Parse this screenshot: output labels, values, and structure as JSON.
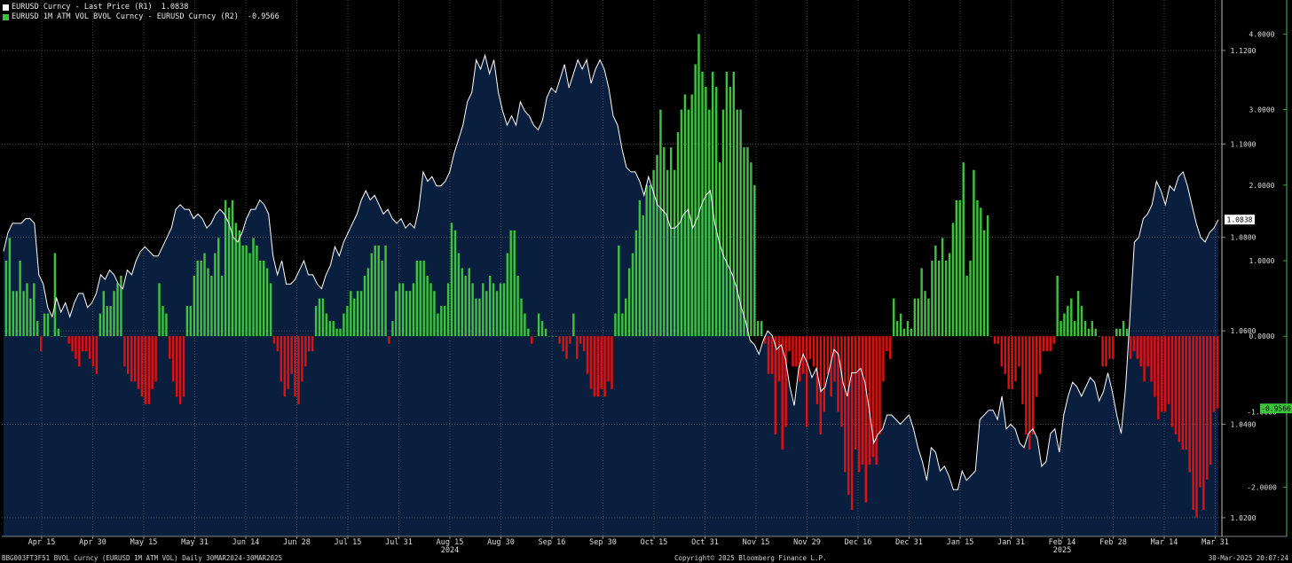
{
  "legend": [
    {
      "label": "EURUSD Curncy - Last Price (R1)",
      "value": "1.0838",
      "color": "#ffffff"
    },
    {
      "label": "EURUSD 1M ATM VOL BVOL Curncy - EURUSD Curncy (R2)",
      "value": "-0.9566",
      "color": "#3ec23e"
    }
  ],
  "footer": {
    "left": "BBG003FT3F51 BVOL Curncy (EURUSD 1M ATM VOL)  Daily 30MAR2024-30MAR2025",
    "center": "Copyright© 2025 Bloomberg Finance L.P.",
    "right": "30-Mar-2025 20:07:24"
  },
  "colors": {
    "background": "#000000",
    "area": "#0a1f3e",
    "line": "#ffffff",
    "pos_bar": "#3ec23e",
    "neg_bar": "#e01010",
    "grid": "#6a6a6a"
  },
  "chart_data": {
    "type": "bar+area",
    "x_ticks": [
      "Apr 15",
      "Apr 30",
      "May 15",
      "May 31",
      "Jun 14",
      "Jun 28",
      "Jul 15",
      "Jul 31",
      "Aug 15",
      "Aug 30",
      "Sep 16",
      "Sep 30",
      "Oct 15",
      "Oct 31",
      "Nov 15",
      "Nov 29",
      "Dec 16",
      "Dec 31",
      "Jan 15",
      "Jan 31",
      "Feb 14",
      "Feb 28",
      "Mar 14",
      "Mar 31"
    ],
    "year_labels": [
      {
        "label": "2024",
        "at": "Aug 15"
      },
      {
        "label": "2025",
        "at": "Feb 14"
      }
    ],
    "r1_axis": {
      "ticks": [
        "1.1200",
        "1.1000",
        "1.0800",
        "1.0600",
        "1.0400",
        "1.0200"
      ],
      "range": [
        1.016,
        1.1308
      ]
    },
    "r2_axis": {
      "ticks": [
        "4.0000",
        "3.0000",
        "2.0000",
        "1.0000",
        "0.0000",
        "-1.0000",
        "-2.0000"
      ],
      "range": [
        -2.65,
        4.45
      ]
    },
    "last_price": {
      "value": "1.0838",
      "y": 1.0838
    },
    "last_spread": {
      "value": "-0.9566",
      "y": -0.9566
    },
    "series": [
      {
        "name": "EURUSD Curncy - Last Price (R1)",
        "type": "area",
        "values": [
          1.077,
          1.081,
          1.083,
          1.083,
          1.083,
          1.084,
          1.084,
          1.083,
          1.072,
          1.07,
          1.065,
          1.063,
          1.067,
          1.064,
          1.066,
          1.063,
          1.066,
          1.068,
          1.068,
          1.065,
          1.066,
          1.068,
          1.072,
          1.071,
          1.073,
          1.072,
          1.07,
          1.069,
          1.073,
          1.072,
          1.075,
          1.077,
          1.078,
          1.077,
          1.076,
          1.076,
          1.078,
          1.08,
          1.082,
          1.086,
          1.087,
          1.086,
          1.086,
          1.084,
          1.085,
          1.084,
          1.082,
          1.083,
          1.085,
          1.086,
          1.085,
          1.083,
          1.08,
          1.079,
          1.081,
          1.084,
          1.086,
          1.086,
          1.088,
          1.087,
          1.085,
          1.076,
          1.072,
          1.075,
          1.07,
          1.07,
          1.071,
          1.073,
          1.075,
          1.072,
          1.072,
          1.07,
          1.069,
          1.072,
          1.074,
          1.078,
          1.076,
          1.079,
          1.081,
          1.083,
          1.085,
          1.088,
          1.09,
          1.088,
          1.089,
          1.087,
          1.085,
          1.086,
          1.084,
          1.083,
          1.084,
          1.082,
          1.083,
          1.082,
          1.086,
          1.094,
          1.092,
          1.093,
          1.091,
          1.091,
          1.092,
          1.094,
          1.098,
          1.101,
          1.104,
          1.109,
          1.111,
          1.118,
          1.116,
          1.119,
          1.115,
          1.118,
          1.111,
          1.107,
          1.104,
          1.106,
          1.104,
          1.109,
          1.107,
          1.106,
          1.104,
          1.103,
          1.105,
          1.11,
          1.112,
          1.111,
          1.114,
          1.117,
          1.112,
          1.115,
          1.118,
          1.116,
          1.118,
          1.113,
          1.116,
          1.118,
          1.116,
          1.112,
          1.106,
          1.104,
          1.099,
          1.095,
          1.094,
          1.094,
          1.092,
          1.089,
          1.093,
          1.09,
          1.087,
          1.086,
          1.085,
          1.082,
          1.082,
          1.083,
          1.085,
          1.086,
          1.082,
          1.084,
          1.087,
          1.089,
          1.09,
          1.083,
          1.079,
          1.076,
          1.074,
          1.072,
          1.069,
          1.065,
          1.062,
          1.058,
          1.057,
          1.055,
          1.058,
          1.06,
          1.059,
          1.056,
          1.057,
          1.054,
          1.048,
          1.044,
          1.052,
          1.055,
          1.053,
          1.05,
          1.052,
          1.047,
          1.048,
          1.052,
          1.056,
          1.055,
          1.049,
          1.046,
          1.051,
          1.051,
          1.052,
          1.049,
          1.043,
          1.036,
          1.038,
          1.039,
          1.042,
          1.042,
          1.041,
          1.04,
          1.041,
          1.042,
          1.039,
          1.035,
          1.032,
          1.028,
          1.035,
          1.034,
          1.03,
          1.031,
          1.029,
          1.026,
          1.026,
          1.03,
          1.028,
          1.029,
          1.03,
          1.041,
          1.042,
          1.043,
          1.043,
          1.041,
          1.046,
          1.039,
          1.04,
          1.039,
          1.036,
          1.035,
          1.038,
          1.039,
          1.037,
          1.031,
          1.032,
          1.038,
          1.039,
          1.034,
          1.042,
          1.046,
          1.049,
          1.048,
          1.046,
          1.048,
          1.05,
          1.049,
          1.045,
          1.047,
          1.051,
          1.047,
          1.042,
          1.038,
          1.048,
          1.063,
          1.079,
          1.08,
          1.084,
          1.085,
          1.087,
          1.092,
          1.09,
          1.087,
          1.091,
          1.09,
          1.093,
          1.094,
          1.091,
          1.087,
          1.083,
          1.08,
          1.079,
          1.081,
          1.082,
          1.0838
        ]
      },
      {
        "name": "EURUSD 1M ATM VOL BVOL Curncy - EURUSD Curncy (R2)",
        "type": "bar",
        "values": [
          1.0,
          1.3,
          0.6,
          0.6,
          1.0,
          0.6,
          0.7,
          0.5,
          0.7,
          0.2,
          -0.2,
          0.3,
          0.3,
          0.0,
          1.1,
          0.1,
          0.0,
          0.0,
          -0.1,
          -0.2,
          -0.3,
          -0.4,
          -0.2,
          -0.2,
          -0.3,
          -0.4,
          -0.5,
          0.3,
          0.6,
          0.4,
          0.4,
          0.6,
          0.7,
          0.8,
          -0.4,
          -0.5,
          -0.6,
          -0.6,
          -0.7,
          -0.8,
          -0.9,
          -0.9,
          -0.7,
          -0.6,
          0.7,
          0.4,
          0.3,
          -0.3,
          -0.6,
          -0.8,
          -0.9,
          -0.8,
          0.4,
          0.4,
          0.8,
          1.0,
          1.0,
          1.1,
          0.9,
          0.8,
          1.1,
          1.3,
          0.8,
          1.8,
          1.7,
          1.8,
          1.5,
          1.4,
          1.2,
          1.2,
          1.1,
          1.3,
          1.2,
          1.0,
          1.0,
          0.9,
          0.7,
          -0.1,
          -0.2,
          -0.6,
          -0.8,
          -0.7,
          -0.5,
          -0.8,
          -0.9,
          -0.6,
          -0.4,
          -0.2,
          -0.2,
          0.4,
          0.5,
          0.5,
          0.3,
          0.2,
          0.2,
          0.1,
          0.1,
          0.3,
          0.4,
          0.6,
          0.5,
          0.6,
          0.6,
          0.8,
          0.9,
          1.1,
          1.2,
          1.2,
          1.0,
          1.2,
          -0.1,
          0.2,
          0.6,
          0.7,
          0.7,
          0.6,
          0.6,
          0.7,
          1.0,
          1.0,
          1.0,
          0.8,
          0.7,
          0.6,
          0.3,
          0.4,
          0.4,
          0.7,
          1.5,
          1.4,
          1.1,
          0.9,
          0.8,
          0.9,
          0.7,
          0.5,
          0.5,
          0.7,
          0.6,
          0.8,
          0.7,
          0.6,
          0.7,
          0.7,
          1.1,
          1.4,
          1.4,
          0.8,
          0.5,
          0.3,
          0.1,
          -0.1,
          0.0,
          0.3,
          0.2,
          0.1,
          0.0,
          0.0,
          0.0,
          -0.1,
          -0.2,
          -0.3,
          -0.1,
          0.3,
          -0.3,
          -0.1,
          -0.2,
          -0.5,
          -0.7,
          -0.8,
          -0.8,
          -0.7,
          -0.8,
          -0.6,
          -0.7,
          0.3,
          1.2,
          0.3,
          0.5,
          0.9,
          1.1,
          1.4,
          1.8,
          1.6,
          2.0,
          2.0,
          2.2,
          2.4,
          3.0,
          2.5,
          2.2,
          2.5,
          2.2,
          2.7,
          3.0,
          3.2,
          3.0,
          3.2,
          3.6,
          4.0,
          3.5,
          3.3,
          3.0,
          3.5,
          3.3,
          2.3,
          3.0,
          3.5,
          3.3,
          3.5,
          3.0,
          3.0,
          2.5,
          2.5,
          2.3,
          2.0,
          0.2,
          0.2,
          -0.1,
          -0.5,
          -0.5,
          -1.3,
          -0.6,
          -1.5,
          -1.2,
          -0.2,
          -0.4,
          -0.4,
          -0.6,
          -0.5,
          -1.2,
          -0.3,
          -0.4,
          -0.9,
          -1.3,
          -1.0,
          -0.5,
          -0.8,
          -0.6,
          -1.0,
          -1.2,
          -1.8,
          -2.1,
          -2.3,
          -1.5,
          -1.8,
          -1.7,
          -2.2,
          -1.7,
          -1.6,
          -1.7,
          -1.3,
          -0.6,
          -0.2,
          -0.3,
          0.5,
          0.2,
          0.3,
          0.1,
          0.2,
          0.1,
          0.5,
          0.5,
          0.9,
          0.6,
          0.5,
          1.0,
          1.2,
          1.0,
          1.3,
          1.0,
          1.1,
          1.5,
          1.8,
          1.8,
          2.3,
          0.8,
          1.0,
          2.2,
          1.8,
          1.7,
          1.4,
          1.6,
          0.0,
          -0.1,
          -0.1,
          -0.4,
          -0.5,
          -0.7,
          -0.7,
          -0.6,
          -0.4,
          -0.9,
          -1.3,
          -1.5,
          -1.3,
          -0.8,
          -0.5,
          -0.2,
          -0.2,
          -0.2,
          -0.1,
          0.8,
          0.2,
          0.3,
          0.4,
          0.5,
          0.2,
          0.6,
          0.4,
          0.2,
          0.1,
          0.2,
          0.1,
          0.0,
          -0.4,
          -0.4,
          -0.3,
          -0.3,
          0.1,
          0.1,
          0.2,
          0.1,
          -0.3,
          -0.2,
          -0.3,
          -0.4,
          -0.6,
          -0.4,
          -0.6,
          -0.8,
          -1.1,
          -1.0,
          -1.0,
          -0.9,
          -1.2,
          -1.3,
          -1.4,
          -1.5,
          -1.5,
          -1.8,
          -2.3,
          -2.4,
          -2.0,
          -2.3,
          -1.9,
          -1.7,
          -1.0,
          -0.9566
        ]
      }
    ]
  }
}
